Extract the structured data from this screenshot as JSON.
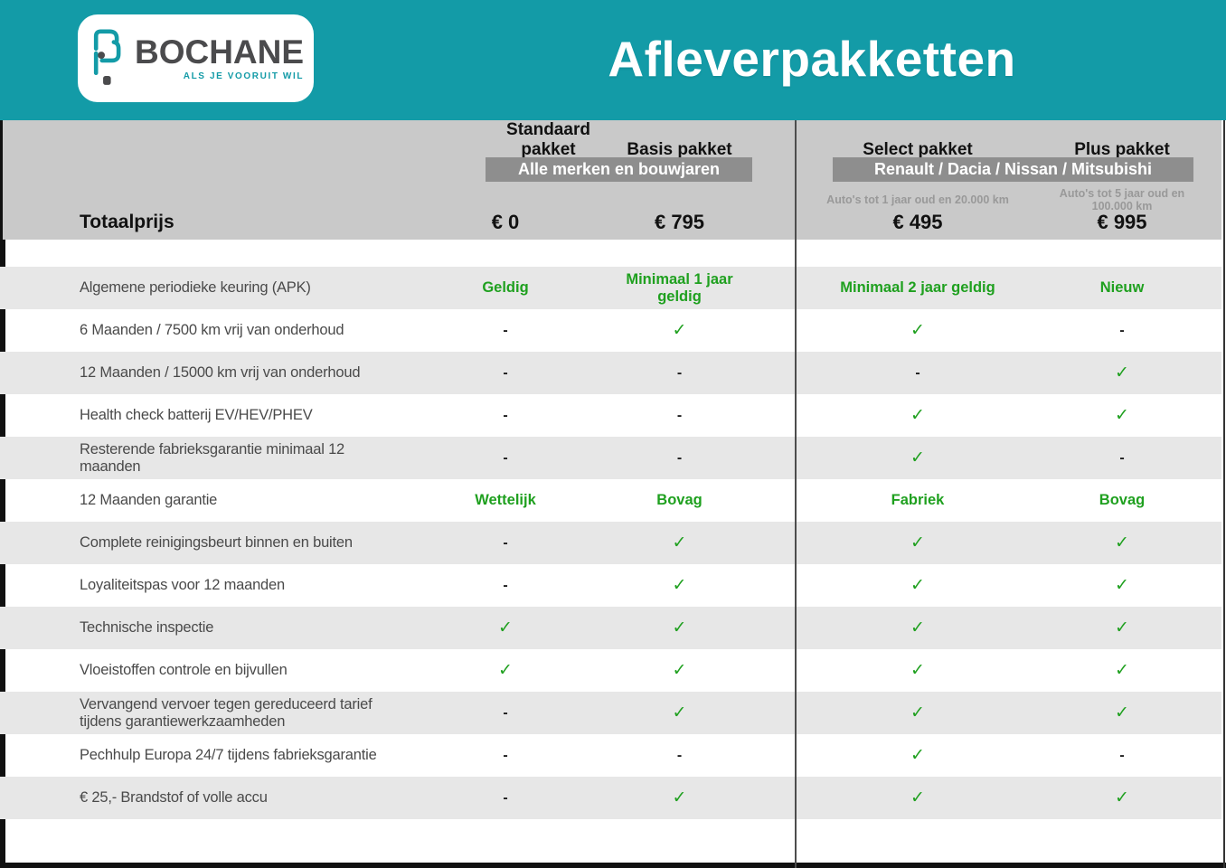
{
  "header": {
    "title": "Afleverpakketten",
    "logo": {
      "name": "BOCHANE",
      "tagline": "ALS JE VOORUIT WIL"
    }
  },
  "colors": {
    "teal": "#139BA7",
    "green": "#1FA01F",
    "band_gray": "#8E8E8E",
    "header_gray": "#C9C9C9",
    "row_gray": "#E7E7E7"
  },
  "table": {
    "total_label": "Totaalprijs",
    "bands": [
      {
        "label": "Alle merken en bouwjaren"
      },
      {
        "label": "Renault / Dacia / Nissan / Mitsubishi"
      }
    ],
    "packages": [
      {
        "name": "Standaard pakket",
        "subtitle": "",
        "price": "€ 0"
      },
      {
        "name": "Basis pakket",
        "subtitle": "",
        "price": "€ 795"
      },
      {
        "name": "Select pakket",
        "subtitle": "Auto's tot 1 jaar oud en 20.000 km",
        "price": "€ 495"
      },
      {
        "name": "Plus pakket",
        "subtitle": "Auto's tot 5 jaar oud en 100.000 km",
        "price": "€ 995"
      }
    ],
    "rows": [
      {
        "label": "Algemene periodieke keuring (APK)",
        "values": [
          "Geldig",
          "Minimaal 1 jaar geldig",
          "Minimaal 2 jaar geldig",
          "Nieuw"
        ]
      },
      {
        "label": "6 Maanden / 7500 km vrij van onderhoud",
        "values": [
          "-",
          "✓",
          "✓",
          "-"
        ]
      },
      {
        "label": "12 Maanden / 15000 km vrij van onderhoud",
        "values": [
          "-",
          "-",
          "-",
          "✓"
        ]
      },
      {
        "label": "Health check batterij EV/HEV/PHEV",
        "values": [
          "-",
          "-",
          "✓",
          "✓"
        ]
      },
      {
        "label": "Resterende fabrieksgarantie minimaal 12 maanden",
        "values": [
          "-",
          "-",
          "✓",
          "-"
        ]
      },
      {
        "label": "12 Maanden  garantie",
        "values": [
          "Wettelijk",
          "Bovag",
          "Fabriek",
          "Bovag"
        ]
      },
      {
        "label": "Complete reinigingsbeurt binnen en buiten",
        "values": [
          "-",
          "✓",
          "✓",
          "✓"
        ]
      },
      {
        "label": "Loyaliteitspas voor 12 maanden",
        "values": [
          "-",
          "✓",
          "✓",
          "✓"
        ]
      },
      {
        "label": "Technische inspectie",
        "values": [
          "✓",
          "✓",
          "✓",
          "✓"
        ]
      },
      {
        "label": "Vloeistoffen controle en bijvullen",
        "values": [
          "✓",
          "✓",
          "✓",
          "✓"
        ]
      },
      {
        "label": "Vervangend vervoer tegen gereduceerd tarief tijdens garantiewerkzaamheden",
        "values": [
          "-",
          "✓",
          "✓",
          "✓"
        ]
      },
      {
        "label": "Pechhulp Europa 24/7 tijdens fabrieksgarantie",
        "values": [
          "-",
          "-",
          "✓",
          "-"
        ]
      },
      {
        "label": "€ 25,- Brandstof of  volle accu",
        "values": [
          "-",
          "✓",
          "✓",
          "✓"
        ]
      }
    ]
  }
}
